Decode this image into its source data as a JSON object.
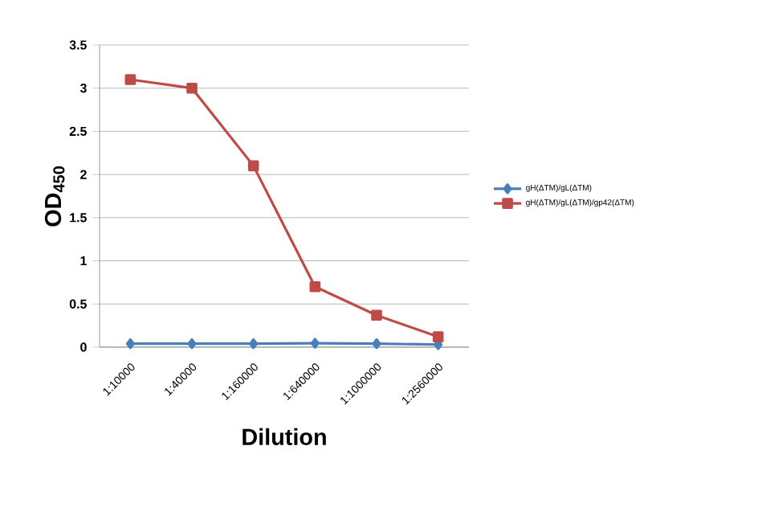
{
  "chart_data": {
    "type": "line",
    "xlabel": "Dilution",
    "ylabel": "OD$_{450}$",
    "categories": [
      "1:10000",
      "1:40000",
      "1:160000",
      "1:640000",
      "1:1000000",
      "1:2560000"
    ],
    "series": [
      {
        "name": "gH(ΔTM)/gL(ΔTM)",
        "color": "#4a7ebb",
        "marker": "diamond",
        "values": [
          0.04,
          0.04,
          0.04,
          0.045,
          0.04,
          0.03
        ]
      },
      {
        "name": "gH(ΔTM)/gL(ΔTM)/gp42(ΔTM)",
        "color": "#be4b48",
        "marker": "square",
        "values": [
          3.1,
          3.0,
          2.1,
          0.7,
          0.37,
          0.12
        ]
      }
    ],
    "ylim": [
      0,
      3.5
    ],
    "yticks": [
      0,
      0.5,
      1,
      1.5,
      2,
      2.5,
      3,
      3.5
    ],
    "grid": "y",
    "legend": "right",
    "line_style": "solid"
  }
}
